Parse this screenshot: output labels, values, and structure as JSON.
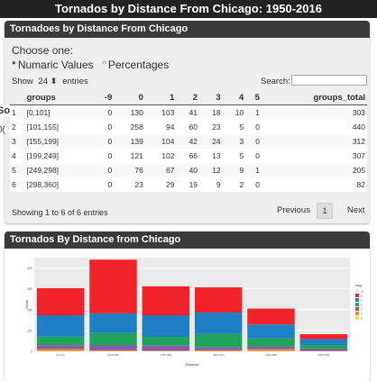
{
  "header": {
    "title": "Tornados by Distance From Chicago: 1950-2016"
  },
  "panel1": {
    "title": "Tornadoes by Distance From Chicago",
    "choose_label": "Choose one:",
    "radio_options": [
      "Numaric Values",
      "Percentages"
    ],
    "show_prefix": "Show",
    "show_value": "24",
    "show_suffix": "entries",
    "search_label": "Search:",
    "search_value": "",
    "columns": [
      "",
      "groups",
      "-9",
      "0",
      "1",
      "2",
      "3",
      "4",
      "5",
      "groups_total"
    ],
    "rows": [
      [
        "1",
        "[0,101]",
        "0",
        "130",
        "103",
        "41",
        "18",
        "10",
        "1",
        "303"
      ],
      [
        "2",
        "[101,155]",
        "0",
        "258",
        "94",
        "60",
        "23",
        "5",
        "0",
        "440"
      ],
      [
        "3",
        "[155,199]",
        "0",
        "139",
        "104",
        "42",
        "24",
        "3",
        "0",
        "312"
      ],
      [
        "4",
        "[199,249]",
        "0",
        "121",
        "102",
        "66",
        "13",
        "5",
        "0",
        "307"
      ],
      [
        "5",
        "[249,298]",
        "0",
        "76",
        "67",
        "40",
        "12",
        "9",
        "1",
        "205"
      ],
      [
        "6",
        "[298,360]",
        "0",
        "23",
        "29",
        "19",
        "9",
        "2",
        "0",
        "82"
      ]
    ],
    "info": "Showing 1 to 6 of 6 entries",
    "pagination": {
      "previous": "Previous",
      "page": "1",
      "next": "Next"
    }
  },
  "panel2": {
    "title": "Tornados By Distance from Chicago"
  },
  "side_fragments": {
    "s": "So",
    "zero": "0("
  },
  "chart_data": {
    "type": "bar",
    "stacked": true,
    "xlabel": "Distance",
    "ylabel": "Count",
    "legend_title": "mag",
    "legend_position": "right",
    "categories": [
      "[0,101]",
      "[101,155]",
      "[155,199]",
      "[199,249]",
      "[249,298]",
      "[298,360]"
    ],
    "series": [
      {
        "name": "-9",
        "values": [
          0,
          0,
          0,
          0,
          0,
          0
        ],
        "color": "#e6e6e6"
      },
      {
        "name": "0",
        "values": [
          130,
          258,
          139,
          121,
          76,
          23
        ],
        "color": "#f0222a"
      },
      {
        "name": "1",
        "values": [
          103,
          94,
          104,
          102,
          67,
          29
        ],
        "color": "#1f7fc4"
      },
      {
        "name": "2",
        "values": [
          41,
          60,
          42,
          66,
          40,
          19
        ],
        "color": "#21a35c"
      },
      {
        "name": "3",
        "values": [
          18,
          23,
          24,
          13,
          12,
          9
        ],
        "color": "#8a5aa8"
      },
      {
        "name": "4",
        "values": [
          10,
          5,
          3,
          5,
          9,
          2
        ],
        "color": "#f08a2a"
      },
      {
        "name": "5",
        "values": [
          1,
          0,
          0,
          0,
          1,
          0
        ],
        "color": "#f0e63a"
      }
    ],
    "ylim": [
      0,
      450
    ],
    "yticks": [
      0,
      100,
      200,
      300,
      400
    ],
    "grid": true,
    "background": "#ebebeb"
  }
}
